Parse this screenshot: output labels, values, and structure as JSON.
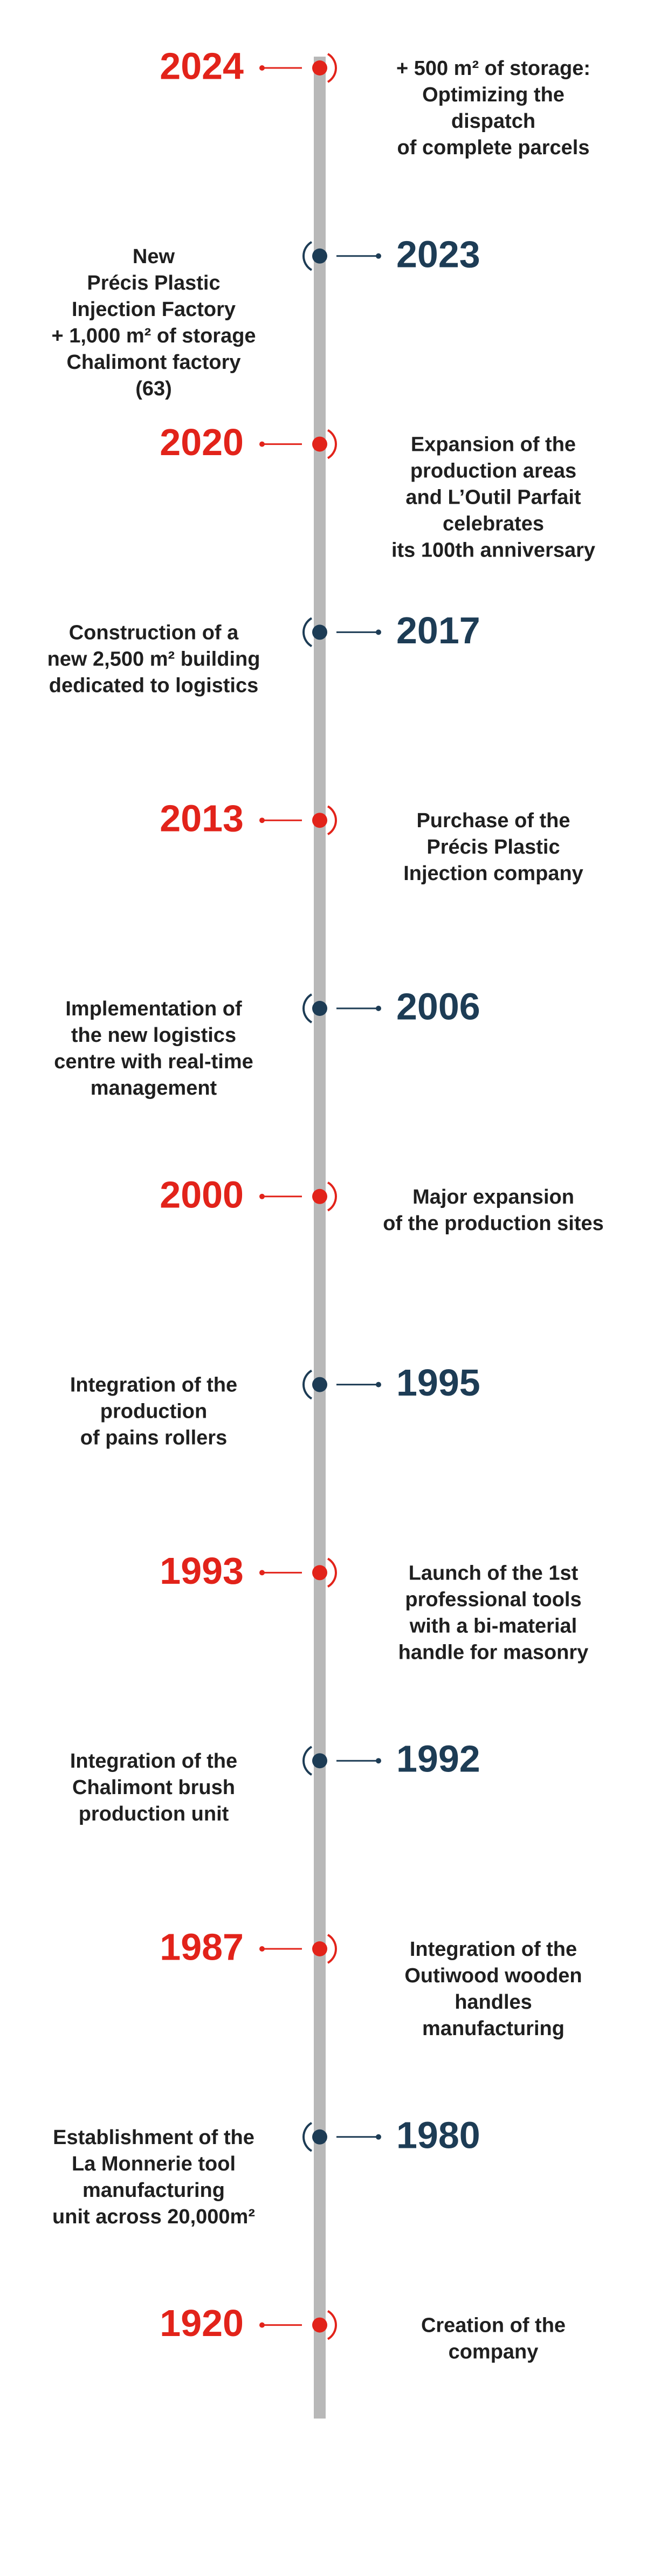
{
  "timeline": {
    "events": [
      {
        "year": "2024",
        "lines": [
          "+ 500 m² of storage:",
          "Optimizing the",
          "dispatch",
          "of complete parcels"
        ]
      },
      {
        "year": "2023",
        "lines": [
          "New",
          "Précis Plastic",
          "Injection Factory",
          "+ 1,000 m² of storage",
          "Chalimont factory",
          "(63)"
        ]
      },
      {
        "year": "2020",
        "lines": [
          "Expansion of the",
          "production areas",
          "and L’Outil Parfait",
          "celebrates",
          "its 100th anniversary"
        ]
      },
      {
        "year": "2017",
        "lines": [
          "Construction of a",
          "new 2,500 m² building",
          "dedicated to logistics"
        ]
      },
      {
        "year": "2013",
        "lines": [
          "Purchase of the",
          "Précis Plastic",
          "Injection company"
        ]
      },
      {
        "year": "2006",
        "lines": [
          "Implementation of",
          "the new logistics",
          "centre with real-time",
          "management"
        ]
      },
      {
        "year": "2000",
        "lines": [
          "Major expansion",
          "of the production sites"
        ]
      },
      {
        "year": "1995",
        "lines": [
          "Integration of the",
          "production",
          "of pains rollers"
        ]
      },
      {
        "year": "1993",
        "lines": [
          "Launch of the 1st",
          "professional tools",
          "with a bi-material",
          "handle for masonry"
        ]
      },
      {
        "year": "1992",
        "lines": [
          "Integration of the",
          "Chalimont brush",
          "production unit"
        ]
      },
      {
        "year": "1987",
        "lines": [
          "Integration of the",
          "Outiwood wooden",
          "handles",
          "manufacturing"
        ]
      },
      {
        "year": "1980",
        "lines": [
          "Establishment of the",
          "La Monnerie tool",
          "manufacturing",
          "unit across 20,000m²"
        ]
      },
      {
        "year": "1920",
        "lines": [
          "Creation of the",
          "company"
        ]
      }
    ]
  }
}
